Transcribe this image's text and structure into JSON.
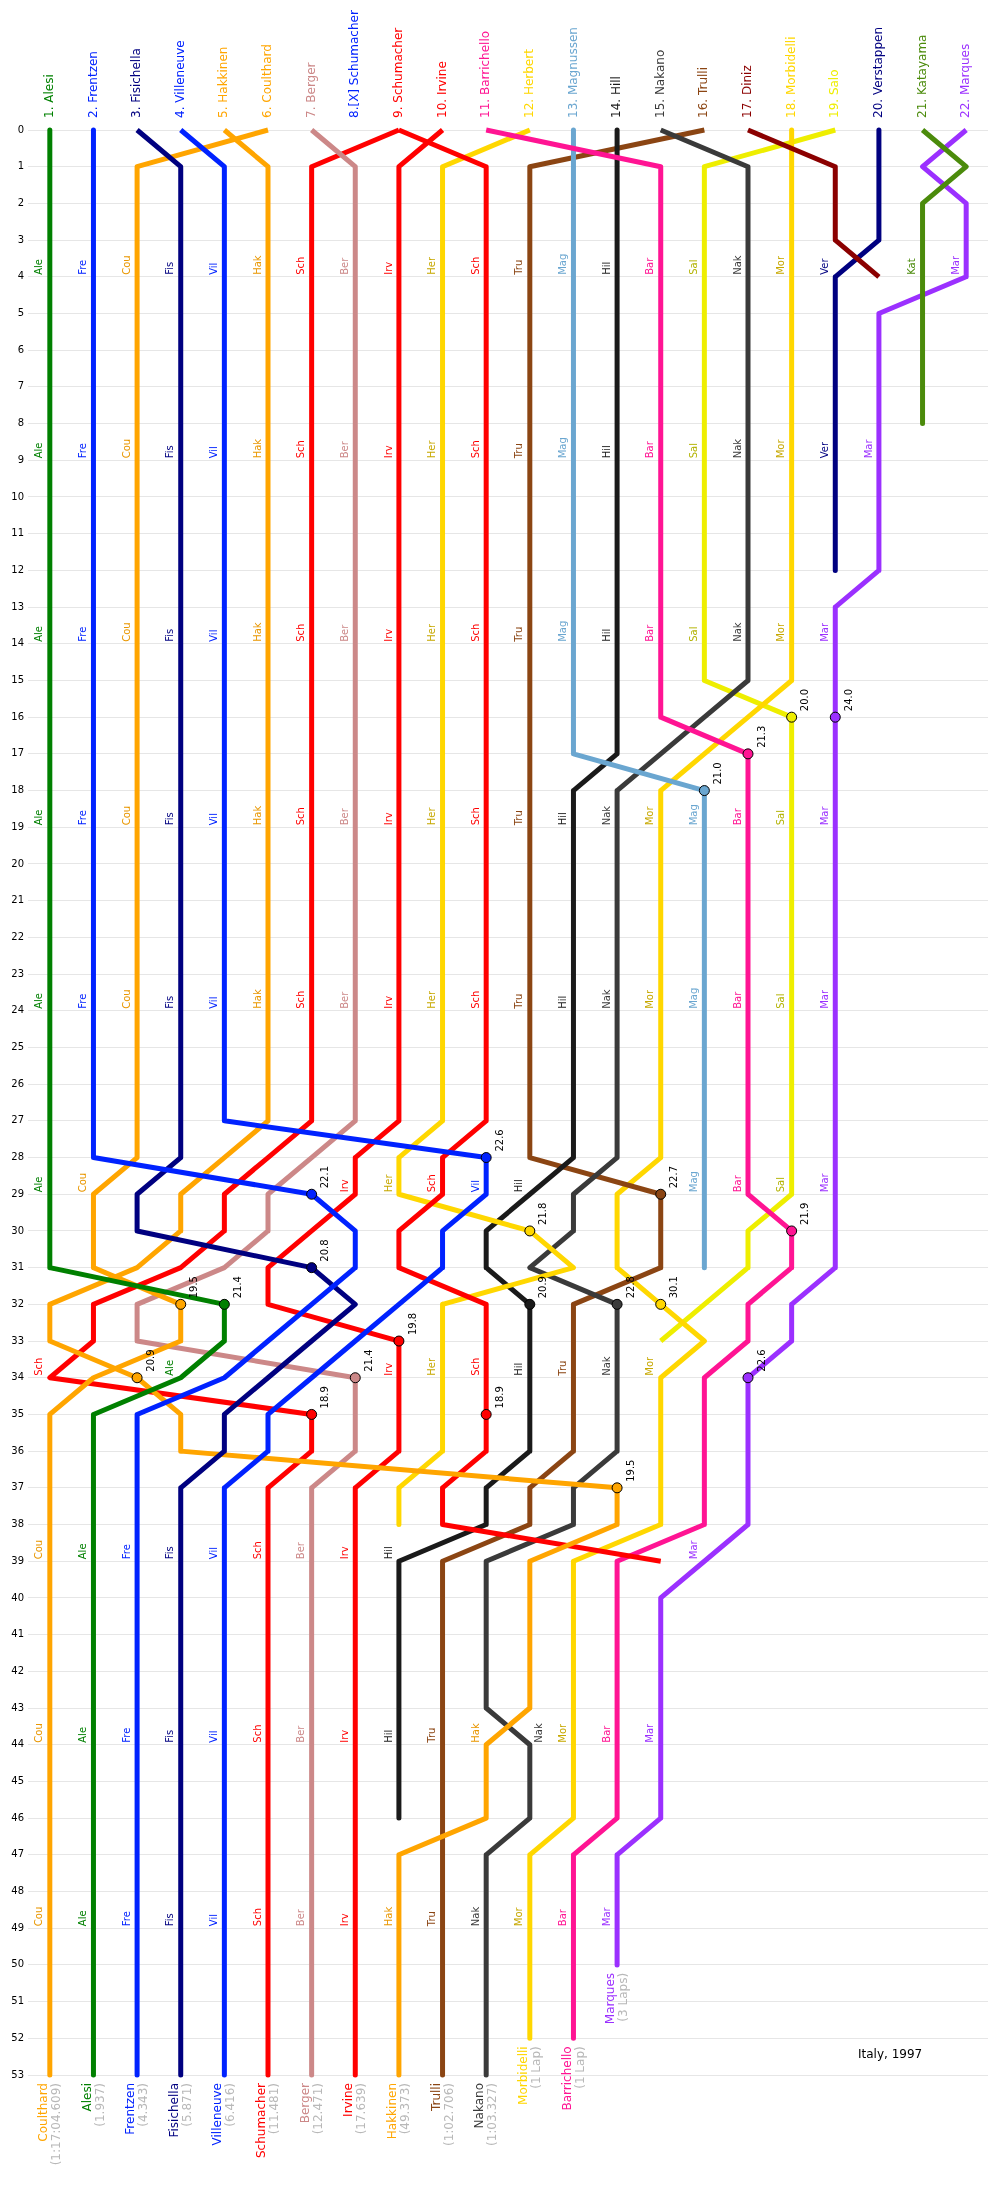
{
  "chart_data": {
    "type": "line",
    "annotations": [
      {
        "text": "20.0",
        "x": 18,
        "y": 16
      },
      {
        "text": "24.0",
        "x": 19,
        "y": 16
      },
      {
        "text": "21.3",
        "x": 17,
        "y": 17
      },
      {
        "text": "21.0",
        "x": 16,
        "y": 18
      },
      {
        "text": "22.6",
        "x": 11,
        "y": 28
      },
      {
        "text": "22.1",
        "x": 7,
        "y": 29
      },
      {
        "text": "22.7",
        "x": 15,
        "y": 29
      },
      {
        "text": "21.8",
        "x": 12,
        "y": 30
      },
      {
        "text": "21.9",
        "x": 18,
        "y": 30
      },
      {
        "text": "20.8",
        "x": 7,
        "y": 31
      },
      {
        "text": "19.5",
        "x": 4,
        "y": 32
      },
      {
        "text": "21.4",
        "x": 5,
        "y": 32
      },
      {
        "text": "20.9",
        "x": 12,
        "y": 32
      },
      {
        "text": "22.8",
        "x": 14,
        "y": 32
      },
      {
        "text": "30.1",
        "x": 15,
        "y": 32
      },
      {
        "text": "19.8",
        "x": 9,
        "y": 33
      },
      {
        "text": "20.9",
        "x": 3,
        "y": 34
      },
      {
        "text": "21.4",
        "x": 8,
        "y": 34
      },
      {
        "text": "22.6",
        "x": 17,
        "y": 34
      },
      {
        "text": "18.9",
        "x": 7,
        "y": 35
      },
      {
        "text": "18.9",
        "x": 11,
        "y": 35
      },
      {
        "text": "19.5",
        "x": 14,
        "y": 37
      },
      {
        "text": "Coulthard (1:17:04.609)",
        "x": 1,
        "y": 53
      },
      {
        "text": "Alesi (1.937)",
        "x": 2,
        "y": 53
      },
      {
        "text": "Frentzen (4.343)",
        "x": 3,
        "y": 53
      },
      {
        "text": "Fisichella (5.871)",
        "x": 4,
        "y": 53
      },
      {
        "text": "Villeneuve (6.416)",
        "x": 5,
        "y": 53
      },
      {
        "text": "Schumacher (11.481)",
        "x": 6,
        "y": 53
      },
      {
        "text": "Berger (12.471)",
        "x": 7,
        "y": 53
      },
      {
        "text": "Irvine (17.639)",
        "x": 8,
        "y": 53
      },
      {
        "text": "Hakkinen (49.373)",
        "x": 9,
        "y": 53
      },
      {
        "text": "Trulli (1:02.706)",
        "x": 10,
        "y": 53
      },
      {
        "text": "Nakano (1:03.327)",
        "x": 11,
        "y": 53
      },
      {
        "text": "Morbidelli (1 Lap)",
        "x": 12,
        "y": 52
      },
      {
        "text": "Barrichello (1 Lap)",
        "x": 13,
        "y": 52
      },
      {
        "text": "Marques (3 Laps)",
        "x": 14,
        "y": 50
      },
      "Italy, 1997"
    ],
    "xlim": [
      0.5,
      22.5
    ],
    "xticks": [
      {
        "value": 1,
        "label": "1. Alesi"
      },
      {
        "value": 2,
        "label": "2. Frentzen"
      },
      {
        "value": 3,
        "label": "3. Fisichella"
      },
      {
        "value": 4,
        "label": "4. Villeneuve"
      },
      {
        "value": 5,
        "label": "5. Hakkinen"
      },
      {
        "value": 6,
        "label": "6. Coulthard"
      },
      {
        "value": 7,
        "label": "7. Berger"
      },
      {
        "value": 8,
        "label": "8.[X] Schumacher"
      },
      {
        "value": 9,
        "label": "9. Schumacher"
      },
      {
        "value": 10,
        "label": "10. Irvine"
      },
      {
        "value": 11,
        "label": "11. Barrichello"
      },
      {
        "value": 12,
        "label": "12. Herbert"
      },
      {
        "value": 13,
        "label": "13. Magnussen"
      },
      {
        "value": 14,
        "label": "14. Hill"
      },
      {
        "value": 15,
        "label": "15. Nakano"
      },
      {
        "value": 16,
        "label": "16. Trulli"
      },
      {
        "value": 17,
        "label": "17. Diniz"
      },
      {
        "value": 18,
        "label": "18. Morbidelli"
      },
      {
        "value": 19,
        "label": "19. Salo"
      },
      {
        "value": 20,
        "label": "20. Verstappen"
      },
      {
        "value": 21,
        "label": "21. Katayama"
      },
      {
        "value": 22,
        "label": "22. Marques"
      }
    ],
    "ylim": [
      53,
      0
    ],
    "yticks": [
      0,
      1,
      2,
      3,
      4,
      5,
      6,
      7,
      8,
      9,
      10,
      11,
      12,
      13,
      14,
      15,
      16,
      17,
      18,
      19,
      20,
      21,
      22,
      23,
      24,
      25,
      26,
      27,
      28,
      29,
      30,
      31,
      32,
      33,
      34,
      35,
      36,
      37,
      38,
      39,
      40,
      41,
      42,
      43,
      44,
      45,
      46,
      47,
      48,
      49,
      50,
      51,
      52,
      53
    ],
    "grid": "y",
    "legend": false,
    "line_style": "solid",
    "series": [
      {
        "name": "Ale",
        "color": "#008000",
        "x": [
          1,
          1,
          1,
          1,
          1,
          1,
          1,
          1,
          1,
          1,
          1,
          1,
          1,
          1,
          1,
          1,
          1,
          1,
          1,
          1,
          1,
          1,
          1,
          1,
          1,
          1,
          1,
          1,
          1,
          1,
          1,
          1,
          5,
          5,
          4,
          2,
          2,
          2,
          2,
          2,
          2,
          2,
          2,
          2,
          2,
          2,
          2,
          2,
          2,
          2,
          2,
          2,
          2,
          2
        ],
        "values": [
          0,
          1,
          2,
          3,
          4,
          5,
          6,
          7,
          8,
          9,
          10,
          11,
          12,
          13,
          14,
          15,
          16,
          17,
          18,
          19,
          20,
          21,
          22,
          23,
          24,
          25,
          26,
          27,
          28,
          29,
          30,
          31,
          32,
          33,
          34,
          35,
          36,
          37,
          38,
          39,
          40,
          41,
          42,
          43,
          44,
          45,
          46,
          47,
          48,
          49,
          50,
          51,
          52,
          53
        ]
      },
      {
        "name": "Fre",
        "color": "#0022ff",
        "x": [
          2,
          2,
          2,
          2,
          2,
          2,
          2,
          2,
          2,
          2,
          2,
          2,
          2,
          2,
          2,
          2,
          2,
          2,
          2,
          2,
          2,
          2,
          2,
          2,
          2,
          2,
          2,
          2,
          2,
          7,
          8,
          8,
          7,
          6,
          5,
          3,
          3,
          3,
          3,
          3,
          3,
          3,
          3,
          3,
          3,
          3,
          3,
          3,
          3,
          3,
          3,
          3,
          3,
          3
        ],
        "values": [
          0,
          1,
          2,
          3,
          4,
          5,
          6,
          7,
          8,
          9,
          10,
          11,
          12,
          13,
          14,
          15,
          16,
          17,
          18,
          19,
          20,
          21,
          22,
          23,
          24,
          25,
          26,
          27,
          28,
          29,
          30,
          31,
          32,
          33,
          34,
          35,
          36,
          37,
          38,
          39,
          40,
          41,
          42,
          43,
          44,
          45,
          46,
          47,
          48,
          49,
          50,
          51,
          52,
          53
        ]
      },
      {
        "name": "Fis",
        "color": "#000080",
        "x": [
          3,
          4,
          4,
          4,
          4,
          4,
          4,
          4,
          4,
          4,
          4,
          4,
          4,
          4,
          4,
          4,
          4,
          4,
          4,
          4,
          4,
          4,
          4,
          4,
          4,
          4,
          4,
          4,
          4,
          3,
          3,
          7,
          8,
          7,
          6,
          5,
          5,
          4,
          4,
          4,
          4,
          4,
          4,
          4,
          4,
          4,
          4,
          4,
          4,
          4,
          4,
          4,
          4,
          4
        ],
        "values": [
          0,
          1,
          2,
          3,
          4,
          5,
          6,
          7,
          8,
          9,
          10,
          11,
          12,
          13,
          14,
          15,
          16,
          17,
          18,
          19,
          20,
          21,
          22,
          23,
          24,
          25,
          26,
          27,
          28,
          29,
          30,
          31,
          32,
          33,
          34,
          35,
          36,
          37,
          38,
          39,
          40,
          41,
          42,
          43,
          44,
          45,
          46,
          47,
          48,
          49,
          50,
          51,
          52,
          53
        ]
      },
      {
        "name": "Vil",
        "color": "#0022ff",
        "x": [
          4,
          5,
          5,
          5,
          5,
          5,
          5,
          5,
          5,
          5,
          5,
          5,
          5,
          5,
          5,
          5,
          5,
          5,
          5,
          5,
          5,
          5,
          5,
          5,
          5,
          5,
          5,
          5,
          11,
          11,
          10,
          10,
          9,
          8,
          7,
          6,
          6,
          5,
          5,
          5,
          5,
          5,
          5,
          5,
          5,
          5,
          5,
          5,
          5,
          5,
          5,
          5,
          5,
          5
        ],
        "values": [
          0,
          1,
          2,
          3,
          4,
          5,
          6,
          7,
          8,
          9,
          10,
          11,
          12,
          13,
          14,
          15,
          16,
          17,
          18,
          19,
          20,
          21,
          22,
          23,
          24,
          25,
          26,
          27,
          28,
          29,
          30,
          31,
          32,
          33,
          34,
          35,
          36,
          37,
          38,
          39,
          40,
          41,
          42,
          43,
          44,
          45,
          46,
          47,
          48,
          49,
          50,
          51,
          52,
          53
        ]
      },
      {
        "name": "Hak",
        "color": "#ffa500",
        "x": [
          5,
          6,
          6,
          6,
          6,
          6,
          6,
          6,
          6,
          6,
          6,
          6,
          6,
          6,
          6,
          6,
          6,
          6,
          6,
          6,
          6,
          6,
          6,
          6,
          6,
          6,
          6,
          6,
          5,
          4,
          4,
          3,
          1,
          1,
          3,
          4,
          4,
          14,
          14,
          12,
          12,
          12,
          12,
          12,
          11,
          11,
          11,
          9,
          9,
          9,
          9,
          9,
          9,
          9
        ],
        "values": [
          0,
          1,
          2,
          3,
          4,
          5,
          6,
          7,
          8,
          9,
          10,
          11,
          12,
          13,
          14,
          15,
          16,
          17,
          18,
          19,
          20,
          21,
          22,
          23,
          24,
          25,
          26,
          27,
          28,
          29,
          30,
          31,
          32,
          33,
          34,
          35,
          36,
          37,
          38,
          39,
          40,
          41,
          42,
          43,
          44,
          45,
          46,
          47,
          48,
          49,
          50,
          51,
          52,
          53
        ]
      },
      {
        "name": "Cou",
        "color": "#ffa500",
        "x": [
          6,
          3,
          3,
          3,
          3,
          3,
          3,
          3,
          3,
          3,
          3,
          3,
          3,
          3,
          3,
          3,
          3,
          3,
          3,
          3,
          3,
          3,
          3,
          3,
          3,
          3,
          3,
          3,
          3,
          2,
          2,
          2,
          4,
          4,
          2,
          1,
          1,
          1,
          1,
          1,
          1,
          1,
          1,
          1,
          1,
          1,
          1,
          1,
          1,
          1,
          1,
          1,
          1,
          1
        ],
        "values": [
          0,
          1,
          2,
          3,
          4,
          5,
          6,
          7,
          8,
          9,
          10,
          11,
          12,
          13,
          14,
          15,
          16,
          17,
          18,
          19,
          20,
          21,
          22,
          23,
          24,
          25,
          26,
          27,
          28,
          29,
          30,
          31,
          32,
          33,
          34,
          35,
          36,
          37,
          38,
          39,
          40,
          41,
          42,
          43,
          44,
          45,
          46,
          47,
          48,
          49,
          50,
          51,
          52,
          53
        ]
      },
      {
        "name": "Ber",
        "color": "#cc8888",
        "x": [
          7,
          8,
          8,
          8,
          8,
          8,
          8,
          8,
          8,
          8,
          8,
          8,
          8,
          8,
          8,
          8,
          8,
          8,
          8,
          8,
          8,
          8,
          8,
          8,
          8,
          8,
          8,
          8,
          7,
          6,
          6,
          5,
          3,
          3,
          8,
          8,
          8,
          7,
          7,
          7,
          7,
          7,
          7,
          7,
          7,
          7,
          7,
          7,
          7,
          7,
          7,
          7,
          7,
          7
        ],
        "values": [
          0,
          1,
          2,
          3,
          4,
          5,
          6,
          7,
          8,
          9,
          10,
          11,
          12,
          13,
          14,
          15,
          16,
          17,
          18,
          19,
          20,
          21,
          22,
          23,
          24,
          25,
          26,
          27,
          28,
          29,
          30,
          31,
          32,
          33,
          34,
          35,
          36,
          37,
          38,
          39,
          40,
          41,
          42,
          43,
          44,
          45,
          46,
          47,
          48,
          49,
          50,
          51,
          52,
          53
        ]
      },
      {
        "name": "Sch",
        "color": "#ff0000",
        "x": [
          9,
          11,
          11,
          11,
          11,
          11,
          11,
          11,
          11,
          11,
          11,
          11,
          11,
          11,
          11,
          11,
          11,
          11,
          11,
          11,
          11,
          11,
          11,
          11,
          11,
          11,
          11,
          11,
          10,
          10,
          9,
          9,
          11,
          11,
          11,
          11,
          11,
          10,
          10,
          15
        ],
        "values": [
          0,
          1,
          2,
          3,
          4,
          5,
          6,
          7,
          8,
          9,
          10,
          11,
          12,
          13,
          14,
          15,
          16,
          17,
          18,
          19,
          20,
          21,
          22,
          23,
          24,
          25,
          26,
          27,
          28,
          29,
          30,
          31,
          32,
          33,
          34,
          35,
          36,
          37,
          38,
          39
        ]
      },
      {
        "name": "Sch",
        "color": "#ff0000",
        "x": [
          9,
          7,
          7,
          7,
          7,
          7,
          7,
          7,
          7,
          7,
          7,
          7,
          7,
          7,
          7,
          7,
          7,
          7,
          7,
          7,
          7,
          7,
          7,
          7,
          7,
          7,
          7,
          7,
          6,
          5,
          5,
          4,
          2,
          2,
          1,
          7,
          7,
          6,
          6,
          6,
          6,
          6,
          6,
          6,
          6,
          6,
          6,
          6,
          6,
          6,
          6,
          6,
          6,
          6
        ],
        "values": [
          0,
          1,
          2,
          3,
          4,
          5,
          6,
          7,
          8,
          9,
          10,
          11,
          12,
          13,
          14,
          15,
          16,
          17,
          18,
          19,
          20,
          21,
          22,
          23,
          24,
          25,
          26,
          27,
          28,
          29,
          30,
          31,
          32,
          33,
          34,
          35,
          36,
          37,
          38,
          39,
          40,
          41,
          42,
          43,
          44,
          45,
          46,
          47,
          48,
          49,
          50,
          51,
          52,
          53
        ]
      },
      {
        "name": "Irv",
        "color": "#ff0000",
        "x": [
          10,
          9,
          9,
          9,
          9,
          9,
          9,
          9,
          9,
          9,
          9,
          9,
          9,
          9,
          9,
          9,
          9,
          9,
          9,
          9,
          9,
          9,
          9,
          9,
          9,
          9,
          9,
          9,
          8,
          8,
          7,
          6,
          6,
          9,
          9,
          9,
          9,
          8,
          8,
          8,
          8,
          8,
          8,
          8,
          8,
          8,
          8,
          8,
          8,
          8,
          8,
          8,
          8,
          8
        ],
        "values": [
          0,
          1,
          2,
          3,
          4,
          5,
          6,
          7,
          8,
          9,
          10,
          11,
          12,
          13,
          14,
          15,
          16,
          17,
          18,
          19,
          20,
          21,
          22,
          23,
          24,
          25,
          26,
          27,
          28,
          29,
          30,
          31,
          32,
          33,
          34,
          35,
          36,
          37,
          38,
          39,
          40,
          41,
          42,
          43,
          44,
          45,
          46,
          47,
          48,
          49,
          50,
          51,
          52,
          53
        ]
      },
      {
        "name": "Bar",
        "color": "#ff1493",
        "x": [
          11,
          15,
          15,
          15,
          15,
          15,
          15,
          15,
          15,
          15,
          15,
          15,
          15,
          15,
          15,
          15,
          15,
          17,
          17,
          17,
          17,
          17,
          17,
          17,
          17,
          17,
          17,
          17,
          17,
          17,
          18,
          18,
          17,
          17,
          16,
          16,
          16,
          16,
          16,
          14,
          14,
          14,
          14,
          14,
          14,
          14,
          14,
          13,
          13,
          13,
          13,
          13,
          13
        ],
        "values": [
          0,
          1,
          2,
          3,
          4,
          5,
          6,
          7,
          8,
          9,
          10,
          11,
          12,
          13,
          14,
          15,
          16,
          17,
          18,
          19,
          20,
          21,
          22,
          23,
          24,
          25,
          26,
          27,
          28,
          29,
          30,
          31,
          32,
          33,
          34,
          35,
          36,
          37,
          38,
          39,
          40,
          41,
          42,
          43,
          44,
          45,
          46,
          47,
          48,
          49,
          50,
          51,
          52
        ]
      },
      {
        "name": "Her",
        "color": "#ffd700",
        "x": [
          12,
          10,
          10,
          10,
          10,
          10,
          10,
          10,
          10,
          10,
          10,
          10,
          10,
          10,
          10,
          10,
          10,
          10,
          10,
          10,
          10,
          10,
          10,
          10,
          10,
          10,
          10,
          10,
          9,
          9,
          12,
          13,
          10,
          10,
          10,
          10,
          10,
          9,
          9
        ],
        "values": [
          0,
          1,
          2,
          3,
          4,
          5,
          6,
          7,
          8,
          9,
          10,
          11,
          12,
          13,
          14,
          15,
          16,
          17,
          18,
          19,
          20,
          21,
          22,
          23,
          24,
          25,
          26,
          27,
          28,
          29,
          30,
          31,
          32,
          33,
          34,
          35,
          36,
          37,
          38
        ]
      },
      {
        "name": "Mag",
        "color": "#6aa6d0",
        "x": [
          13,
          13,
          13,
          13,
          13,
          13,
          13,
          13,
          13,
          13,
          13,
          13,
          13,
          13,
          13,
          13,
          13,
          13,
          16,
          16,
          16,
          16,
          16,
          16,
          16,
          16,
          16,
          16,
          16,
          16,
          16,
          16
        ],
        "values": [
          0,
          1,
          2,
          3,
          4,
          5,
          6,
          7,
          8,
          9,
          10,
          11,
          12,
          13,
          14,
          15,
          16,
          17,
          18,
          19,
          20,
          21,
          22,
          23,
          24,
          25,
          26,
          27,
          28,
          29,
          30,
          31
        ]
      },
      {
        "name": "Hil",
        "color": "#1a1a1a",
        "x": [
          14,
          14,
          14,
          14,
          14,
          14,
          14,
          14,
          14,
          14,
          14,
          14,
          14,
          14,
          14,
          14,
          14,
          14,
          13,
          13,
          13,
          13,
          13,
          13,
          13,
          13,
          13,
          13,
          13,
          12,
          11,
          11,
          12,
          12,
          12,
          12,
          12,
          11,
          11,
          9,
          9,
          9,
          9,
          9,
          9,
          9,
          9
        ],
        "values": [
          0,
          1,
          2,
          3,
          4,
          5,
          6,
          7,
          8,
          9,
          10,
          11,
          12,
          13,
          14,
          15,
          16,
          17,
          18,
          19,
          20,
          21,
          22,
          23,
          24,
          25,
          26,
          27,
          28,
          29,
          30,
          31,
          32,
          33,
          34,
          35,
          36,
          37,
          38,
          39,
          40,
          41,
          42,
          43,
          44,
          45,
          46
        ]
      },
      {
        "name": "Nak",
        "color": "#3a3a3a",
        "x": [
          15,
          17,
          17,
          17,
          17,
          17,
          17,
          17,
          17,
          17,
          17,
          17,
          17,
          17,
          17,
          17,
          16,
          15,
          14,
          14,
          14,
          14,
          14,
          14,
          14,
          14,
          14,
          14,
          14,
          13,
          13,
          12,
          14,
          14,
          14,
          14,
          14,
          13,
          13,
          11,
          11,
          11,
          11,
          11,
          12,
          12,
          12,
          11,
          11,
          11,
          11,
          11,
          11,
          11
        ],
        "values": [
          0,
          1,
          2,
          3,
          4,
          5,
          6,
          7,
          8,
          9,
          10,
          11,
          12,
          13,
          14,
          15,
          16,
          17,
          18,
          19,
          20,
          21,
          22,
          23,
          24,
          25,
          26,
          27,
          28,
          29,
          30,
          31,
          32,
          33,
          34,
          35,
          36,
          37,
          38,
          39,
          40,
          41,
          42,
          43,
          44,
          45,
          46,
          47,
          48,
          49,
          50,
          51,
          52,
          53
        ]
      },
      {
        "name": "Tru",
        "color": "#8b4513",
        "x": [
          16,
          12,
          12,
          12,
          12,
          12,
          12,
          12,
          12,
          12,
          12,
          12,
          12,
          12,
          12,
          12,
          12,
          12,
          12,
          12,
          12,
          12,
          12,
          12,
          12,
          12,
          12,
          12,
          12,
          15,
          15,
          15,
          13,
          13,
          13,
          13,
          13,
          12,
          12,
          10,
          10,
          10,
          10,
          10,
          10,
          10,
          10,
          10,
          10,
          10,
          10,
          10,
          10,
          10
        ],
        "values": [
          0,
          1,
          2,
          3,
          4,
          5,
          6,
          7,
          8,
          9,
          10,
          11,
          12,
          13,
          14,
          15,
          16,
          17,
          18,
          19,
          20,
          21,
          22,
          23,
          24,
          25,
          26,
          27,
          28,
          29,
          30,
          31,
          32,
          33,
          34,
          35,
          36,
          37,
          38,
          39,
          40,
          41,
          42,
          43,
          44,
          45,
          46,
          47,
          48,
          49,
          50,
          51,
          52,
          53
        ]
      },
      {
        "color": "#8b0000",
        "x": [
          17,
          19,
          19,
          19,
          20
        ],
        "values": [
          0,
          1,
          2,
          3,
          4
        ]
      },
      {
        "name": "Mor",
        "color": "#ffd700",
        "x": [
          18,
          18,
          18,
          18,
          18,
          18,
          18,
          18,
          18,
          18,
          18,
          18,
          18,
          18,
          18,
          18,
          17,
          16,
          15,
          15,
          15,
          15,
          15,
          15,
          15,
          15,
          15,
          15,
          15,
          14,
          14,
          14,
          15,
          16,
          15,
          15,
          15,
          15,
          15,
          13,
          13,
          13,
          13,
          13,
          13,
          13,
          13,
          12,
          12,
          12,
          12,
          12,
          12
        ],
        "values": [
          0,
          1,
          2,
          3,
          4,
          5,
          6,
          7,
          8,
          9,
          10,
          11,
          12,
          13,
          14,
          15,
          16,
          17,
          18,
          19,
          20,
          21,
          22,
          23,
          24,
          25,
          26,
          27,
          28,
          29,
          30,
          31,
          32,
          33,
          34,
          35,
          36,
          37,
          38,
          39,
          40,
          41,
          42,
          43,
          44,
          45,
          46,
          47,
          48,
          49,
          50,
          51,
          52
        ]
      },
      {
        "name": "Sal",
        "color": "#eeee00",
        "x": [
          19,
          16,
          16,
          16,
          16,
          16,
          16,
          16,
          16,
          16,
          16,
          16,
          16,
          16,
          16,
          16,
          18,
          18,
          18,
          18,
          18,
          18,
          18,
          18,
          18,
          18,
          18,
          18,
          18,
          18,
          17,
          17,
          16,
          15
        ],
        "values": [
          0,
          1,
          2,
          3,
          4,
          5,
          6,
          7,
          8,
          9,
          10,
          11,
          12,
          13,
          14,
          15,
          16,
          17,
          18,
          19,
          20,
          21,
          22,
          23,
          24,
          25,
          26,
          27,
          28,
          29,
          30,
          31,
          32,
          33
        ]
      },
      {
        "name": "Ver",
        "color": "#000080",
        "x": [
          20,
          20,
          20,
          20,
          19,
          19,
          19,
          19,
          19,
          19,
          19,
          19,
          19
        ],
        "values": [
          0,
          1,
          2,
          3,
          4,
          5,
          6,
          7,
          8,
          9,
          10,
          11,
          12
        ]
      },
      {
        "name": "Kat",
        "color": "#4b8b0b",
        "x": [
          21,
          22,
          21,
          21,
          21,
          21,
          21,
          21,
          21
        ],
        "values": [
          0,
          1,
          2,
          3,
          4,
          5,
          6,
          7,
          8
        ]
      },
      {
        "name": "Mar",
        "color": "#9b30ff",
        "x": [
          22,
          21,
          22,
          22,
          22,
          20,
          20,
          20,
          20,
          20,
          20,
          20,
          20,
          19,
          19,
          19,
          19,
          19,
          19,
          19,
          19,
          19,
          19,
          19,
          19,
          19,
          19,
          19,
          19,
          19,
          19,
          19,
          18,
          18,
          17,
          17,
          17,
          17,
          17,
          16,
          15,
          15,
          15,
          15,
          15,
          15,
          15,
          14,
          14,
          14,
          14
        ],
        "values": [
          0,
          1,
          2,
          3,
          4,
          5,
          6,
          7,
          8,
          9,
          10,
          11,
          12,
          13,
          14,
          15,
          16,
          17,
          18,
          19,
          20,
          21,
          22,
          23,
          24,
          25,
          26,
          27,
          28,
          29,
          30,
          31,
          32,
          33,
          34,
          35,
          36,
          37,
          38,
          39,
          40,
          41,
          42,
          43,
          44,
          45,
          46,
          47,
          48,
          49,
          50
        ]
      }
    ]
  }
}
